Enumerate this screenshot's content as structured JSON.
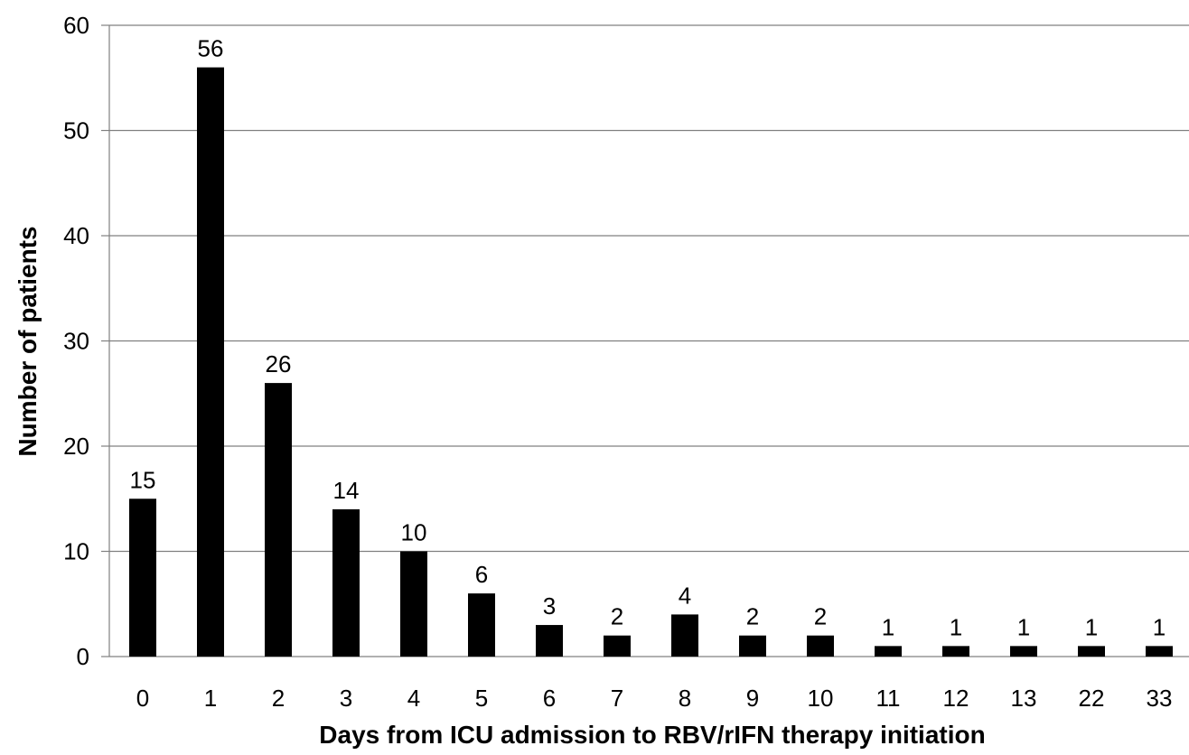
{
  "chart_data": {
    "type": "bar",
    "title": "",
    "xlabel": "Days from ICU admission to RBV/rIFN therapy initiation",
    "ylabel": "Number of patients",
    "categories": [
      "0",
      "1",
      "2",
      "3",
      "4",
      "5",
      "6",
      "7",
      "8",
      "9",
      "10",
      "11",
      "12",
      "13",
      "22",
      "33"
    ],
    "values": [
      15,
      56,
      26,
      14,
      10,
      6,
      3,
      2,
      4,
      2,
      2,
      1,
      1,
      1,
      1,
      1
    ],
    "data_labels": [
      "15",
      "56",
      "26",
      "14",
      "10",
      "6",
      "3",
      "2",
      "4",
      "2",
      "2",
      "1",
      "1",
      "1",
      "1",
      "1"
    ],
    "ylim": [
      0,
      60
    ],
    "yticks": [
      0,
      10,
      20,
      30,
      40,
      50,
      60
    ],
    "ytick_labels": [
      "0",
      "10",
      "20",
      "30",
      "40",
      "50",
      "60"
    ],
    "grid": "horizontal",
    "legend": "none",
    "bar_color": "#000000",
    "grid_color": "#808080"
  }
}
